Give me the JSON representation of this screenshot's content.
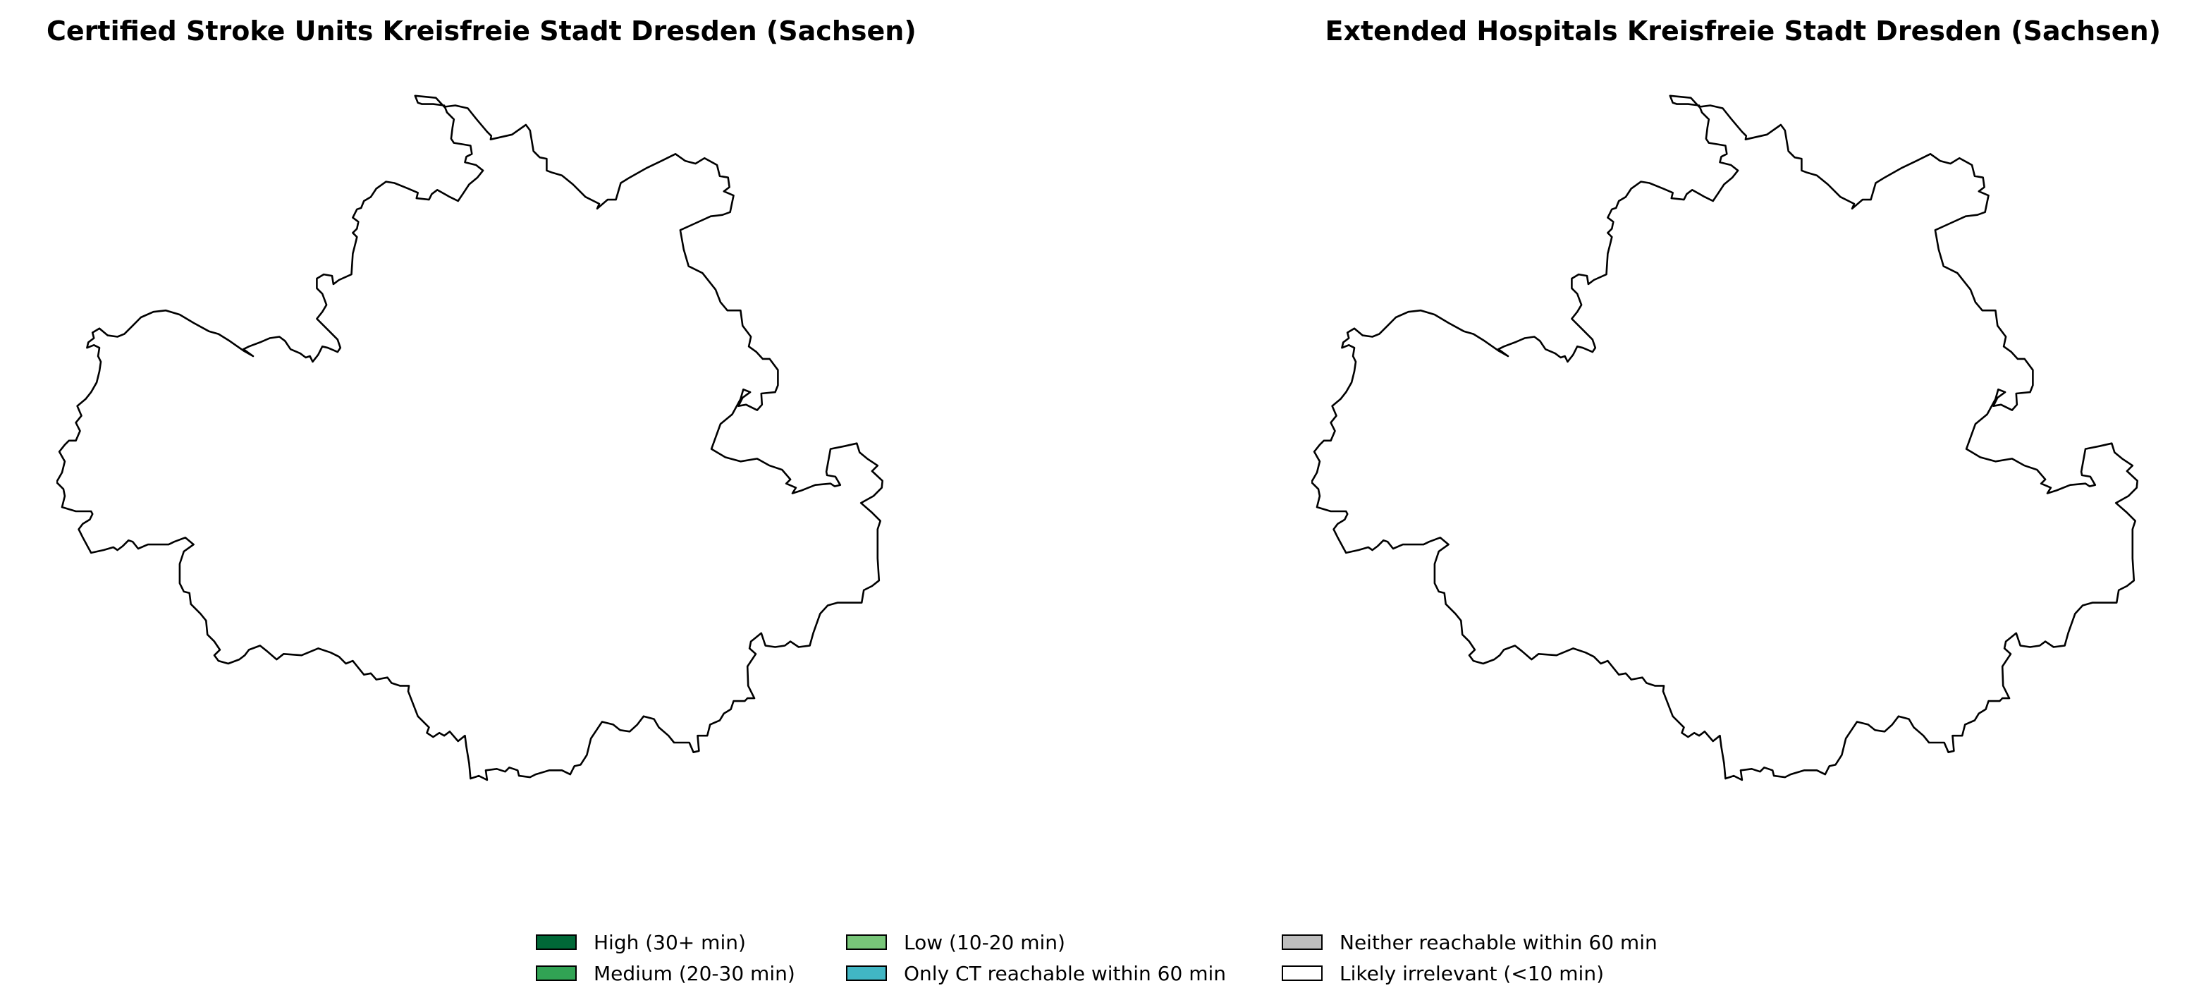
{
  "maps": [
    {
      "title": "Certified Stroke Units Kreisfreie Stadt Dresden (Sachsen)"
    },
    {
      "title": "Extended Hospitals Kreisfreie Stadt Dresden (Sachsen)"
    }
  ],
  "legend": {
    "items": [
      {
        "label": "High (30+ min)",
        "color": "#006837"
      },
      {
        "label": "Medium (20-30 min)",
        "color": "#31a354"
      },
      {
        "label": "Low (10-20 min)",
        "color": "#78c679"
      },
      {
        "label": "Only CT reachable within 60 min",
        "color": "#41b6c4"
      },
      {
        "label": "Neither reachable within 60 min",
        "color": "#bdbdbd"
      },
      {
        "label": "Likely irrelevant (<10 min)",
        "color": "#ffffff"
      }
    ]
  }
}
